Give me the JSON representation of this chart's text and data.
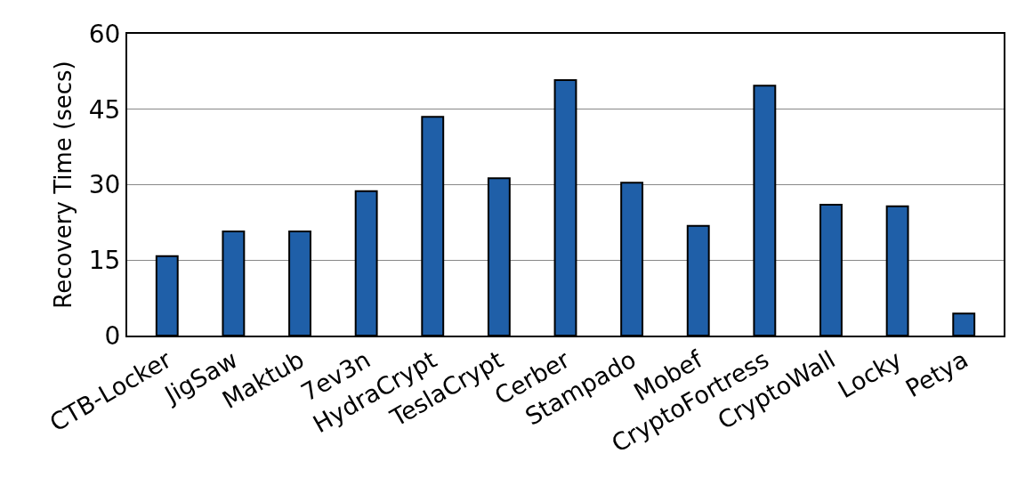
{
  "chart_data": {
    "type": "bar",
    "ylabel": "Recovery Time (secs)",
    "categories": [
      "CTB-Locker",
      "JigSaw",
      "Maktub",
      "7ev3n",
      "HydraCrypt",
      "TeslaCrypt",
      "Cerber",
      "Stampado",
      "Mobef",
      "CryptoFortress",
      "CryptoWall",
      "Locky",
      "Petya"
    ],
    "values": [
      15.8,
      20.7,
      20.7,
      28.7,
      43.5,
      31.3,
      50.8,
      30.4,
      21.8,
      49.7,
      26,
      25.7,
      4.4
    ],
    "color": "#1f5fa8",
    "ylim": [
      0,
      60
    ],
    "yticks": [
      0,
      15,
      30,
      45,
      60
    ],
    "grid": "y"
  }
}
